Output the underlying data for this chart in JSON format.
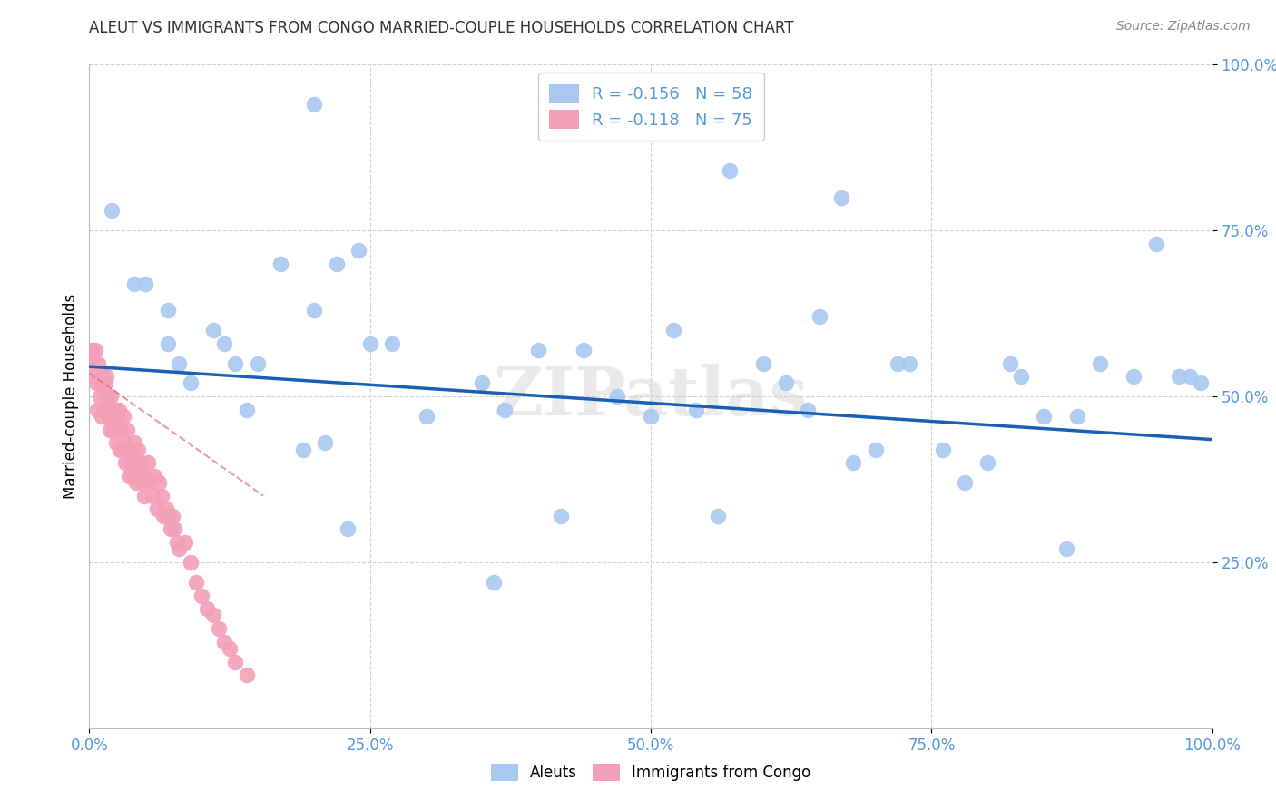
{
  "title": "ALEUT VS IMMIGRANTS FROM CONGO MARRIED-COUPLE HOUSEHOLDS CORRELATION CHART",
  "source": "Source: ZipAtlas.com",
  "ylabel_label": "Married-couple Households",
  "watermark": "ZIPatlas",
  "legend_aleut": "Aleuts",
  "legend_congo": "Immigrants from Congo",
  "r_aleut": -0.156,
  "n_aleut": 58,
  "r_congo": -0.118,
  "n_congo": 75,
  "aleut_color": "#a8c8f0",
  "congo_color": "#f4a0b8",
  "trendline_aleut_color": "#1a5fb4",
  "trendline_congo_color": "#e06080",
  "background_color": "#ffffff",
  "grid_color": "#cccccc",
  "axis_label_color": "#5599dd",
  "title_color": "#333333",
  "xlim": [
    0.0,
    1.0
  ],
  "ylim": [
    0.0,
    1.0
  ],
  "x_ticks": [
    0.0,
    0.25,
    0.5,
    0.75,
    1.0
  ],
  "y_ticks": [
    0.25,
    0.5,
    0.75,
    1.0
  ],
  "x_tick_labels": [
    "0.0%",
    "25.0%",
    "50.0%",
    "75.0%",
    "100.0%"
  ],
  "y_tick_labels": [
    "25.0%",
    "50.0%",
    "75.0%",
    "100.0%"
  ],
  "aleut_x": [
    0.02,
    0.04,
    0.05,
    0.07,
    0.07,
    0.08,
    0.09,
    0.11,
    0.12,
    0.13,
    0.14,
    0.15,
    0.17,
    0.19,
    0.21,
    0.23,
    0.25,
    0.27,
    0.3,
    0.35,
    0.36,
    0.37,
    0.44,
    0.47,
    0.5,
    0.52,
    0.57,
    0.6,
    0.62,
    0.64,
    0.68,
    0.7,
    0.73,
    0.76,
    0.8,
    0.82,
    0.85,
    0.88,
    0.9,
    0.93,
    0.95,
    0.97,
    0.98,
    0.99,
    0.2,
    0.22,
    0.24,
    0.4,
    0.42,
    0.54,
    0.56,
    0.65,
    0.67,
    0.72,
    0.78,
    0.83,
    0.87,
    0.2
  ],
  "aleut_y": [
    0.78,
    0.67,
    0.67,
    0.63,
    0.58,
    0.55,
    0.52,
    0.6,
    0.58,
    0.55,
    0.48,
    0.55,
    0.7,
    0.42,
    0.43,
    0.3,
    0.58,
    0.58,
    0.47,
    0.52,
    0.22,
    0.48,
    0.57,
    0.5,
    0.47,
    0.6,
    0.84,
    0.55,
    0.52,
    0.48,
    0.4,
    0.42,
    0.55,
    0.42,
    0.4,
    0.55,
    0.47,
    0.47,
    0.55,
    0.53,
    0.73,
    0.53,
    0.53,
    0.52,
    0.63,
    0.7,
    0.72,
    0.57,
    0.32,
    0.48,
    0.32,
    0.62,
    0.8,
    0.55,
    0.37,
    0.53,
    0.27,
    0.94
  ],
  "congo_x": [
    0.002,
    0.003,
    0.004,
    0.005,
    0.006,
    0.007,
    0.008,
    0.009,
    0.01,
    0.011,
    0.012,
    0.013,
    0.014,
    0.015,
    0.016,
    0.017,
    0.018,
    0.019,
    0.02,
    0.021,
    0.022,
    0.023,
    0.024,
    0.025,
    0.026,
    0.027,
    0.028,
    0.029,
    0.03,
    0.031,
    0.032,
    0.033,
    0.034,
    0.035,
    0.036,
    0.037,
    0.038,
    0.039,
    0.04,
    0.041,
    0.042,
    0.043,
    0.044,
    0.045,
    0.046,
    0.047,
    0.048,
    0.049,
    0.05,
    0.052,
    0.054,
    0.056,
    0.058,
    0.06,
    0.062,
    0.064,
    0.066,
    0.068,
    0.07,
    0.072,
    0.074,
    0.076,
    0.078,
    0.08,
    0.085,
    0.09,
    0.095,
    0.1,
    0.105,
    0.11,
    0.115,
    0.12,
    0.125,
    0.13,
    0.14
  ],
  "congo_y": [
    0.57,
    0.55,
    0.53,
    0.57,
    0.52,
    0.48,
    0.55,
    0.5,
    0.52,
    0.47,
    0.53,
    0.48,
    0.52,
    0.53,
    0.5,
    0.47,
    0.45,
    0.5,
    0.48,
    0.45,
    0.47,
    0.48,
    0.43,
    0.47,
    0.48,
    0.42,
    0.45,
    0.42,
    0.47,
    0.43,
    0.4,
    0.42,
    0.45,
    0.38,
    0.42,
    0.4,
    0.38,
    0.4,
    0.43,
    0.4,
    0.37,
    0.42,
    0.4,
    0.38,
    0.4,
    0.37,
    0.38,
    0.35,
    0.38,
    0.4,
    0.37,
    0.35,
    0.38,
    0.33,
    0.37,
    0.35,
    0.32,
    0.33,
    0.32,
    0.3,
    0.32,
    0.3,
    0.28,
    0.27,
    0.28,
    0.25,
    0.22,
    0.2,
    0.18,
    0.17,
    0.15,
    0.13,
    0.12,
    0.1,
    0.08
  ],
  "aleut_trend_x": [
    0.0,
    1.0
  ],
  "aleut_trend_y": [
    0.545,
    0.435
  ],
  "congo_trend_x": [
    0.0,
    0.155
  ],
  "congo_trend_y": [
    0.535,
    0.35
  ]
}
